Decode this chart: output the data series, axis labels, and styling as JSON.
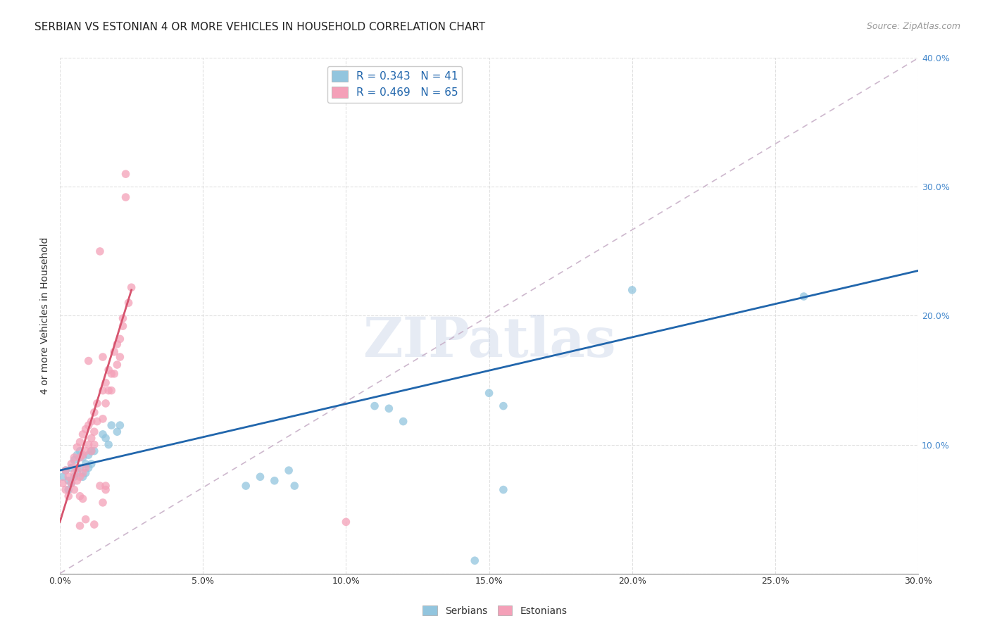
{
  "title": "SERBIAN VS ESTONIAN 4 OR MORE VEHICLES IN HOUSEHOLD CORRELATION CHART",
  "source": "Source: ZipAtlas.com",
  "ylabel": "4 or more Vehicles in Household",
  "watermark": "ZIPatlas",
  "xlim": [
    0.0,
    0.3
  ],
  "ylim": [
    0.0,
    0.4
  ],
  "xticks": [
    0.0,
    0.05,
    0.1,
    0.15,
    0.2,
    0.25,
    0.3
  ],
  "yticks": [
    0.0,
    0.1,
    0.2,
    0.3,
    0.4
  ],
  "xtick_labels": [
    "0.0%",
    "5.0%",
    "10.0%",
    "15.0%",
    "20.0%",
    "25.0%",
    "30.0%"
  ],
  "ytick_labels": [
    "",
    "10.0%",
    "20.0%",
    "30.0%",
    "40.0%"
  ],
  "legend_serbian": "R = 0.343   N = 41",
  "legend_estonian": "R = 0.469   N = 65",
  "serbian_color": "#92c5de",
  "estonian_color": "#f4a0b8",
  "serbian_line_color": "#2166ac",
  "estonian_line_color": "#d6546e",
  "diagonal_color": "#c8b0c8",
  "serbian_points": [
    [
      0.001,
      0.075
    ],
    [
      0.002,
      0.08
    ],
    [
      0.003,
      0.072
    ],
    [
      0.003,
      0.065
    ],
    [
      0.004,
      0.082
    ],
    [
      0.004,
      0.07
    ],
    [
      0.005,
      0.088
    ],
    [
      0.005,
      0.075
    ],
    [
      0.006,
      0.092
    ],
    [
      0.006,
      0.078
    ],
    [
      0.007,
      0.095
    ],
    [
      0.007,
      0.082
    ],
    [
      0.008,
      0.09
    ],
    [
      0.008,
      0.075
    ],
    [
      0.009,
      0.085
    ],
    [
      0.009,
      0.078
    ],
    [
      0.01,
      0.092
    ],
    [
      0.01,
      0.082
    ],
    [
      0.011,
      0.095
    ],
    [
      0.011,
      0.085
    ],
    [
      0.012,
      0.095
    ],
    [
      0.015,
      0.108
    ],
    [
      0.016,
      0.105
    ],
    [
      0.017,
      0.1
    ],
    [
      0.018,
      0.115
    ],
    [
      0.02,
      0.11
    ],
    [
      0.021,
      0.115
    ],
    [
      0.065,
      0.068
    ],
    [
      0.07,
      0.075
    ],
    [
      0.075,
      0.072
    ],
    [
      0.08,
      0.08
    ],
    [
      0.082,
      0.068
    ],
    [
      0.11,
      0.13
    ],
    [
      0.115,
      0.128
    ],
    [
      0.12,
      0.118
    ],
    [
      0.15,
      0.14
    ],
    [
      0.155,
      0.13
    ],
    [
      0.2,
      0.22
    ],
    [
      0.26,
      0.215
    ],
    [
      0.155,
      0.065
    ],
    [
      0.145,
      0.01
    ]
  ],
  "estonian_points": [
    [
      0.001,
      0.07
    ],
    [
      0.002,
      0.065
    ],
    [
      0.002,
      0.08
    ],
    [
      0.003,
      0.075
    ],
    [
      0.003,
      0.06
    ],
    [
      0.004,
      0.085
    ],
    [
      0.004,
      0.07
    ],
    [
      0.005,
      0.09
    ],
    [
      0.005,
      0.078
    ],
    [
      0.005,
      0.065
    ],
    [
      0.006,
      0.098
    ],
    [
      0.006,
      0.082
    ],
    [
      0.006,
      0.072
    ],
    [
      0.007,
      0.102
    ],
    [
      0.007,
      0.09
    ],
    [
      0.007,
      0.075
    ],
    [
      0.007,
      0.06
    ],
    [
      0.008,
      0.108
    ],
    [
      0.008,
      0.092
    ],
    [
      0.008,
      0.078
    ],
    [
      0.009,
      0.112
    ],
    [
      0.009,
      0.095
    ],
    [
      0.009,
      0.082
    ],
    [
      0.009,
      0.042
    ],
    [
      0.01,
      0.115
    ],
    [
      0.01,
      0.1
    ],
    [
      0.01,
      0.165
    ],
    [
      0.011,
      0.118
    ],
    [
      0.011,
      0.105
    ],
    [
      0.011,
      0.095
    ],
    [
      0.012,
      0.125
    ],
    [
      0.012,
      0.11
    ],
    [
      0.012,
      0.1
    ],
    [
      0.012,
      0.038
    ],
    [
      0.013,
      0.132
    ],
    [
      0.013,
      0.118
    ],
    [
      0.014,
      0.25
    ],
    [
      0.015,
      0.168
    ],
    [
      0.015,
      0.142
    ],
    [
      0.015,
      0.12
    ],
    [
      0.015,
      0.055
    ],
    [
      0.016,
      0.148
    ],
    [
      0.016,
      0.132
    ],
    [
      0.016,
      0.068
    ],
    [
      0.017,
      0.158
    ],
    [
      0.017,
      0.142
    ],
    [
      0.018,
      0.155
    ],
    [
      0.018,
      0.142
    ],
    [
      0.019,
      0.172
    ],
    [
      0.019,
      0.155
    ],
    [
      0.02,
      0.178
    ],
    [
      0.02,
      0.162
    ],
    [
      0.021,
      0.182
    ],
    [
      0.021,
      0.168
    ],
    [
      0.022,
      0.192
    ],
    [
      0.022,
      0.198
    ],
    [
      0.023,
      0.31
    ],
    [
      0.023,
      0.292
    ],
    [
      0.024,
      0.21
    ],
    [
      0.025,
      0.222
    ],
    [
      0.007,
      0.037
    ],
    [
      0.008,
      0.058
    ],
    [
      0.014,
      0.068
    ],
    [
      0.016,
      0.065
    ],
    [
      0.1,
      0.04
    ]
  ],
  "title_fontsize": 11,
  "source_fontsize": 9,
  "axis_label_fontsize": 10,
  "tick_fontsize": 9,
  "legend_fontsize": 11,
  "background_color": "#ffffff",
  "grid_color": "#dddddd"
}
